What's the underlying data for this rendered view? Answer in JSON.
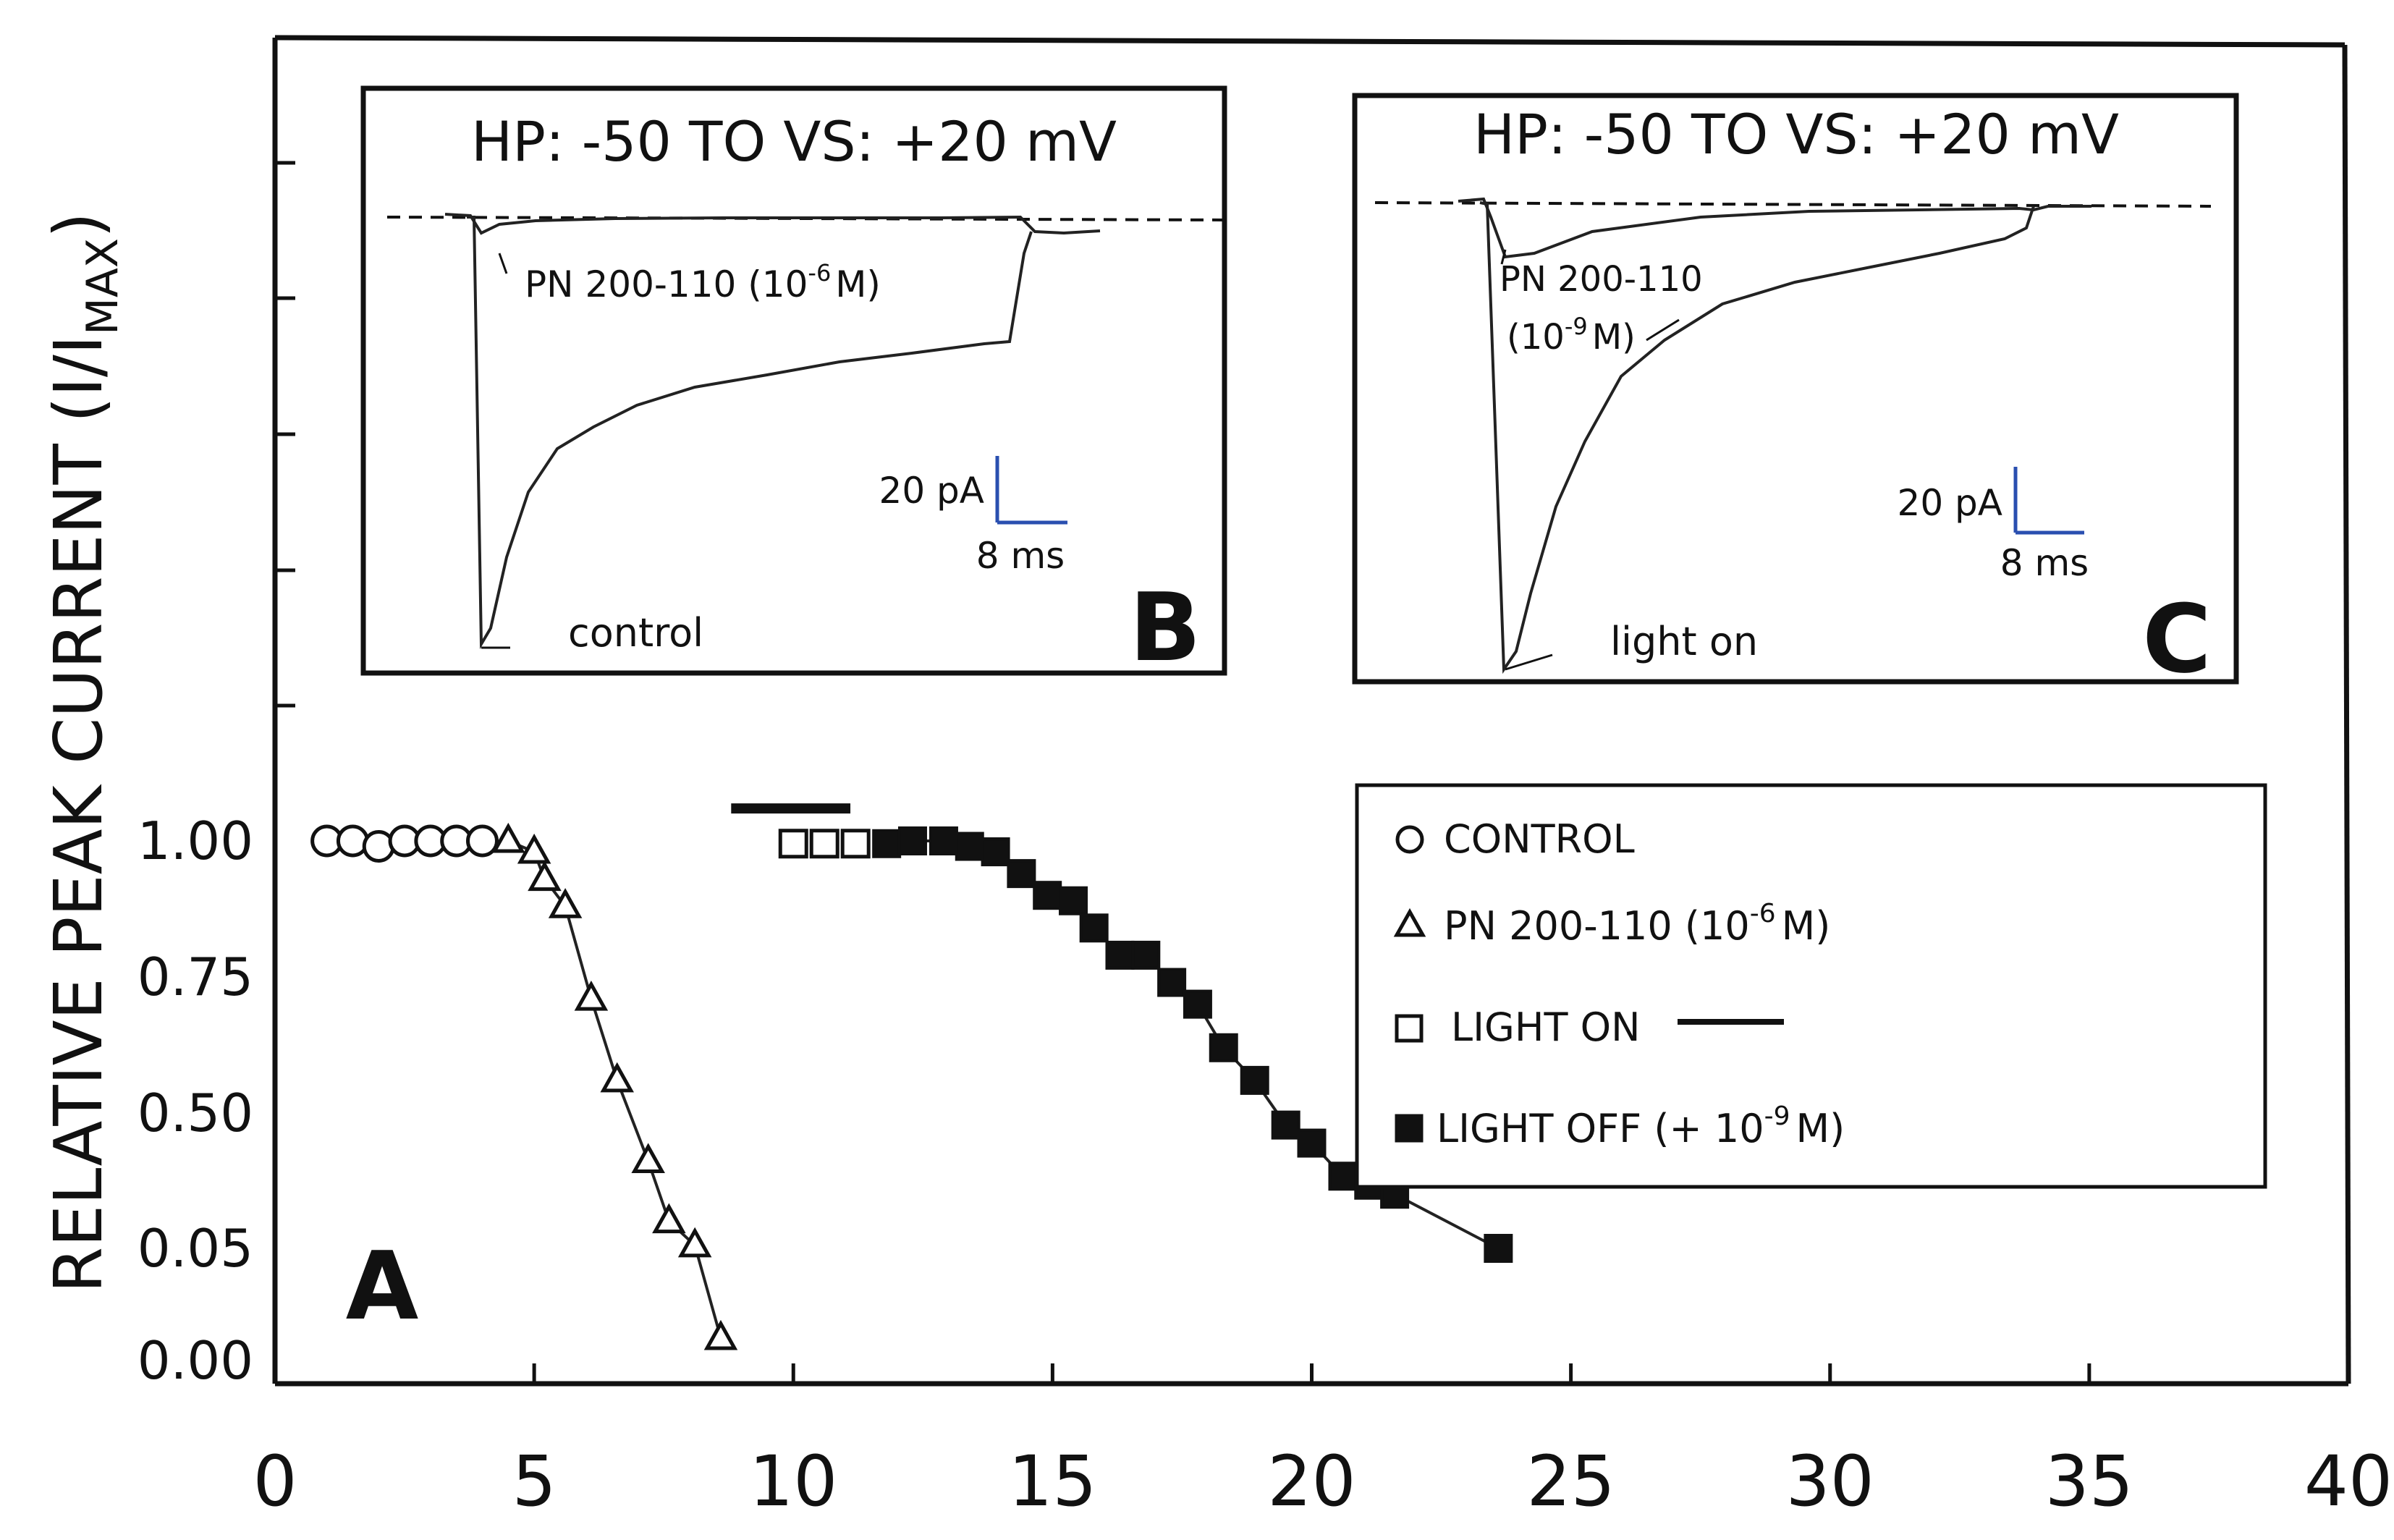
{
  "chart_data": {
    "type": "scatter",
    "panel_label": "A",
    "ylabel_main": "RELATIVE PEAK CURRENT (I/I",
    "ylabel_sub": "MAX",
    "ylabel_close": ")",
    "xlabel": "",
    "xlim": [
      0,
      40
    ],
    "x_ticks": [
      "0",
      "5",
      "10",
      "15",
      "20",
      "25",
      "30",
      "35",
      "40"
    ],
    "y_ticks": [
      "1.00",
      "0.75",
      "0.50",
      "0.05",
      "0.00"
    ],
    "y_tick_values": [
      1.0,
      0.75,
      0.5,
      0.05,
      0.0
    ],
    "series": [
      {
        "name": "CONTROL",
        "marker": "circle",
        "points": [
          [
            1,
            1.0
          ],
          [
            1.5,
            1.0
          ],
          [
            2,
            0.99
          ],
          [
            2.5,
            1.0
          ],
          [
            3,
            1.0
          ],
          [
            3.5,
            1.0
          ],
          [
            4,
            1.0
          ]
        ]
      },
      {
        "name": "PN 200-110 (10⁻⁶ M)",
        "marker": "triangle",
        "connected": true,
        "points": [
          [
            4.5,
            1.0
          ],
          [
            5,
            0.98
          ],
          [
            5.2,
            0.93
          ],
          [
            5.6,
            0.88
          ],
          [
            6.1,
            0.71
          ],
          [
            6.6,
            0.56
          ],
          [
            7.2,
            0.34
          ],
          [
            7.6,
            0.14
          ],
          [
            8.1,
            0.06
          ],
          [
            8.6,
            0.01
          ]
        ]
      },
      {
        "name": "LIGHT ON",
        "marker": "square",
        "points": [
          [
            10,
            0.995
          ],
          [
            10.6,
            0.995
          ],
          [
            11.2,
            0.995
          ]
        ]
      },
      {
        "name": "LIGHT OFF (+ 10⁻⁹ M)",
        "marker": "filled-square",
        "connected": true,
        "points": [
          [
            11.8,
            0.995
          ],
          [
            12.3,
            1.0
          ],
          [
            12.9,
            1.0
          ],
          [
            13.4,
            0.99
          ],
          [
            13.9,
            0.98
          ],
          [
            14.4,
            0.94
          ],
          [
            14.9,
            0.9
          ],
          [
            15.4,
            0.89
          ],
          [
            15.8,
            0.84
          ],
          [
            16.3,
            0.79
          ],
          [
            16.8,
            0.79
          ],
          [
            17.3,
            0.74
          ],
          [
            17.8,
            0.7
          ],
          [
            18.3,
            0.62
          ],
          [
            18.9,
            0.56
          ],
          [
            19.5,
            0.46
          ],
          [
            20.0,
            0.4
          ],
          [
            20.6,
            0.29
          ],
          [
            21.1,
            0.26
          ],
          [
            21.6,
            0.23
          ],
          [
            23.6,
            0.05
          ]
        ]
      }
    ],
    "light_bar": {
      "x0": 8.8,
      "x1": 11.1,
      "y": 1.06
    },
    "legend": {
      "position": "right",
      "entries": [
        {
          "marker": "circle",
          "label": "CONTROL"
        },
        {
          "marker": "triangle",
          "label_main": "PN 200-110 (10",
          "label_sup": "-6",
          "label_end": "M)"
        },
        {
          "marker": "square",
          "label": "LIGHT ON",
          "bar": true
        },
        {
          "marker": "filled-square",
          "label_main": "LIGHT OFF (+ 10",
          "label_sup": "-9",
          "label_end": "M)"
        }
      ]
    },
    "insets": [
      {
        "panel_label": "B",
        "title": "HP: -50 TO VS: +20 mV",
        "drug_label_line1": "PN 200-110 (10",
        "drug_label_sup": "-6",
        "drug_label_end": "M)",
        "trace_label": "control",
        "scale_current": "20 pA",
        "scale_time": "8 ms"
      },
      {
        "panel_label": "C",
        "title": "HP: -50 TO VS: +20 mV",
        "drug_label_line1": "PN 200-110",
        "drug_label_line2_open": "(10",
        "drug_label_sup": "-9",
        "drug_label_end": "M)",
        "trace_label": "light on",
        "scale_current": "20 pA",
        "scale_time": "8 ms"
      }
    ]
  }
}
